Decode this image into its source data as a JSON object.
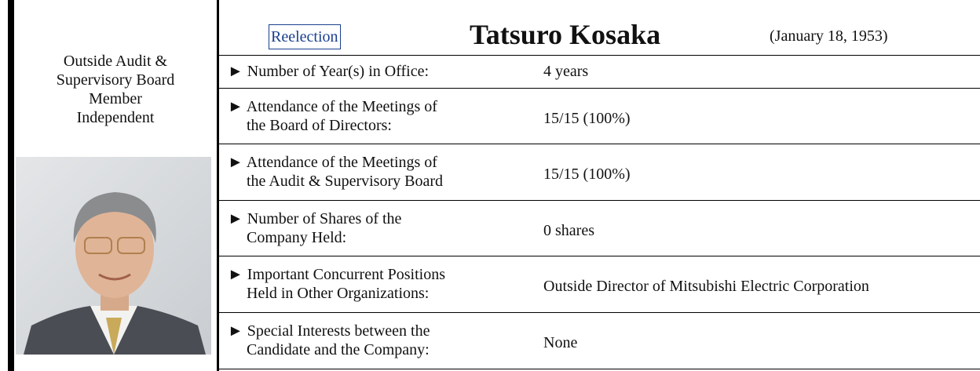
{
  "left": {
    "lines": [
      "Outside Audit &",
      "Supervisory Board",
      "Member",
      "Independent"
    ]
  },
  "header": {
    "badge": "Reelection",
    "name": "Tatsuro Kosaka",
    "birth": "(January 18, 1953)"
  },
  "rows": [
    {
      "label_lines": [
        "► Number of Year(s) in Office:"
      ],
      "value": "4 years"
    },
    {
      "label_lines": [
        "► Attendance of the Meetings of",
        "the Board of Directors:"
      ],
      "value": "15/15 (100%)"
    },
    {
      "label_lines": [
        "► Attendance of the Meetings of",
        "the Audit & Supervisory Board"
      ],
      "value": "15/15 (100%)"
    },
    {
      "label_lines": [
        "► Number of Shares of the",
        "Company Held:"
      ],
      "value": "0 shares"
    },
    {
      "label_lines": [
        "► Important Concurrent Positions",
        "Held in Other Organizations:"
      ],
      "value": "Outside Director of Mitsubishi Electric Corporation"
    },
    {
      "label_lines": [
        "► Special Interests between the",
        "Candidate and the Company:"
      ],
      "value": "None"
    }
  ]
}
